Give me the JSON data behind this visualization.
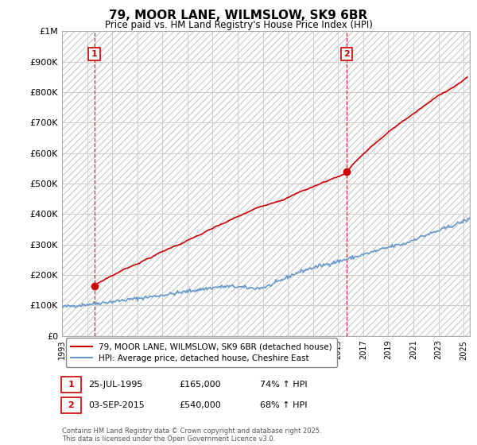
{
  "title": "79, MOOR LANE, WILMSLOW, SK9 6BR",
  "subtitle": "Price paid vs. HM Land Registry's House Price Index (HPI)",
  "ylim": [
    0,
    1000000
  ],
  "yticks": [
    0,
    100000,
    200000,
    300000,
    400000,
    500000,
    600000,
    700000,
    800000,
    900000,
    1000000
  ],
  "ytick_labels": [
    "£0",
    "£100K",
    "£200K",
    "£300K",
    "£400K",
    "£500K",
    "£600K",
    "£700K",
    "£800K",
    "£900K",
    "£1M"
  ],
  "sale1_date": 1995.57,
  "sale1_price": 165000,
  "sale1_label": "1",
  "sale2_date": 2015.67,
  "sale2_price": 540000,
  "sale2_label": "2",
  "line1_color": "#cc0000",
  "line2_color": "#6699cc",
  "background_color": "#ffffff",
  "grid_color": "#cccccc",
  "legend1_text": "79, MOOR LANE, WILMSLOW, SK9 6BR (detached house)",
  "legend2_text": "HPI: Average price, detached house, Cheshire East",
  "footer": "Contains HM Land Registry data © Crown copyright and database right 2025.\nThis data is licensed under the Open Government Licence v3.0.",
  "xmin": 1993,
  "xmax": 2025.5,
  "sale1_date_str": "25-JUL-1995",
  "sale1_price_str": "£165,000",
  "sale1_hpi_str": "74% ↑ HPI",
  "sale2_date_str": "03-SEP-2015",
  "sale2_price_str": "£540,000",
  "sale2_hpi_str": "68% ↑ HPI"
}
